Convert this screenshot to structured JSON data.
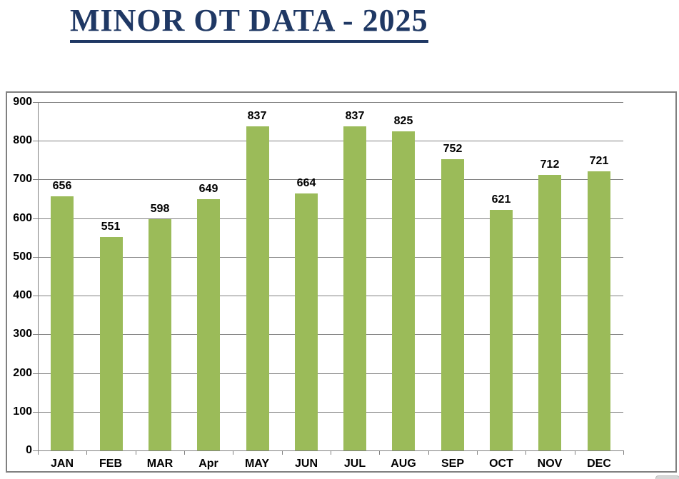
{
  "chart_data": {
    "type": "bar",
    "title": "MINOR OT DATA - 2025",
    "categories": [
      "JAN",
      "FEB",
      "MAR",
      "Apr",
      "MAY",
      "JUN",
      "JUL",
      "AUG",
      "SEP",
      "OCT",
      "NOV",
      "DEC"
    ],
    "values": [
      656,
      551,
      598,
      649,
      837,
      664,
      837,
      825,
      752,
      621,
      712,
      721
    ],
    "xlabel": "",
    "ylabel": "",
    "ylim": [
      0,
      900
    ],
    "yticks": [
      0,
      100,
      200,
      300,
      400,
      500,
      600,
      700,
      800,
      900
    ],
    "grid": true,
    "legend": "none",
    "data_labels": true
  },
  "colors": {
    "title": "#1F3864",
    "bar": "#9BBB59",
    "gridline": "#808080",
    "axis": "#808080",
    "label": "#000000",
    "frame_border": "#808080"
  }
}
